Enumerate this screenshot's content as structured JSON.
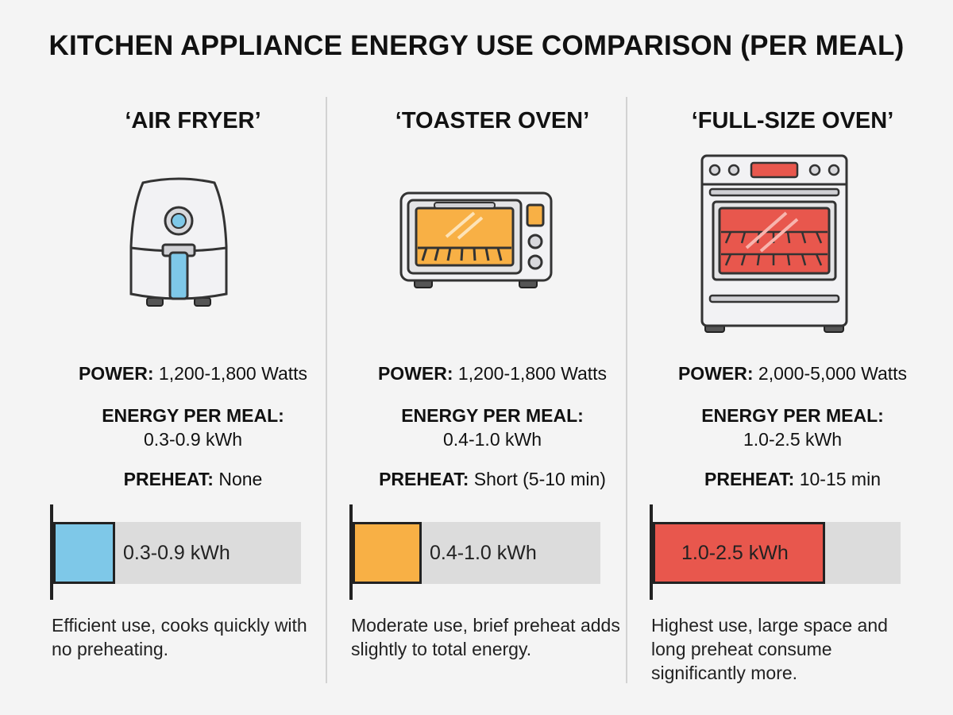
{
  "title": "KITCHEN APPLIANCE ENERGY USE COMPARISON (PER MEAL)",
  "labels": {
    "power": "POWER:",
    "energy_per_meal": "ENERGY PER MEAL:",
    "preheat": "PREHEAT:"
  },
  "appliances": [
    {
      "name": "‘AIR FRYER’",
      "icon": "air-fryer-icon",
      "power": "1,200-1,800 Watts",
      "energy": "0.3-0.9 kWh",
      "preheat": "None",
      "bar_label": "0.3-0.9 kWh",
      "color": "#7ec8e8",
      "description": "Efficient use, cooks quickly with no preheating."
    },
    {
      "name": "‘TOASTER OVEN’",
      "icon": "toaster-oven-icon",
      "power": "1,200-1,800 Watts",
      "energy": "0.4-1.0 kWh",
      "preheat": "Short (5-10 min)",
      "bar_label": "0.4-1.0 kWh",
      "color": "#f8b045",
      "description": "Moderate use, brief preheat adds slightly to total energy."
    },
    {
      "name": "‘FULL-SIZE OVEN’",
      "icon": "full-size-oven-icon",
      "power": "2,000-5,000 Watts",
      "energy": "1.0-2.5 kWh",
      "preheat": "10-15 min",
      "bar_label": "1.0-2.5 kWh",
      "color": "#e8574d",
      "description": "Highest use, large space and long preheat consume significantly more."
    }
  ],
  "chart_data": {
    "type": "bar",
    "orientation": "horizontal",
    "title": "KITCHEN APPLIANCE ENERGY USE COMPARISON (PER MEAL)",
    "categories": [
      "‘AIR FRYER’",
      "‘TOASTER OVEN’",
      "‘FULL-SIZE OVEN’"
    ],
    "series": [
      {
        "values": [
          [
            0.3,
            0.9
          ],
          [
            0.4,
            1.0
          ],
          [
            1.0,
            2.5
          ]
        ]
      }
    ],
    "value_labels": [
      "0.3-0.9 kWh",
      "0.4-1.0 kWh",
      "1.0-2.5 kWh"
    ],
    "colors": [
      "#7ec8e8",
      "#f8b045",
      "#e8574d"
    ],
    "unit": "kWh",
    "xlim": [
      0,
      3.6
    ],
    "grid": false
  }
}
